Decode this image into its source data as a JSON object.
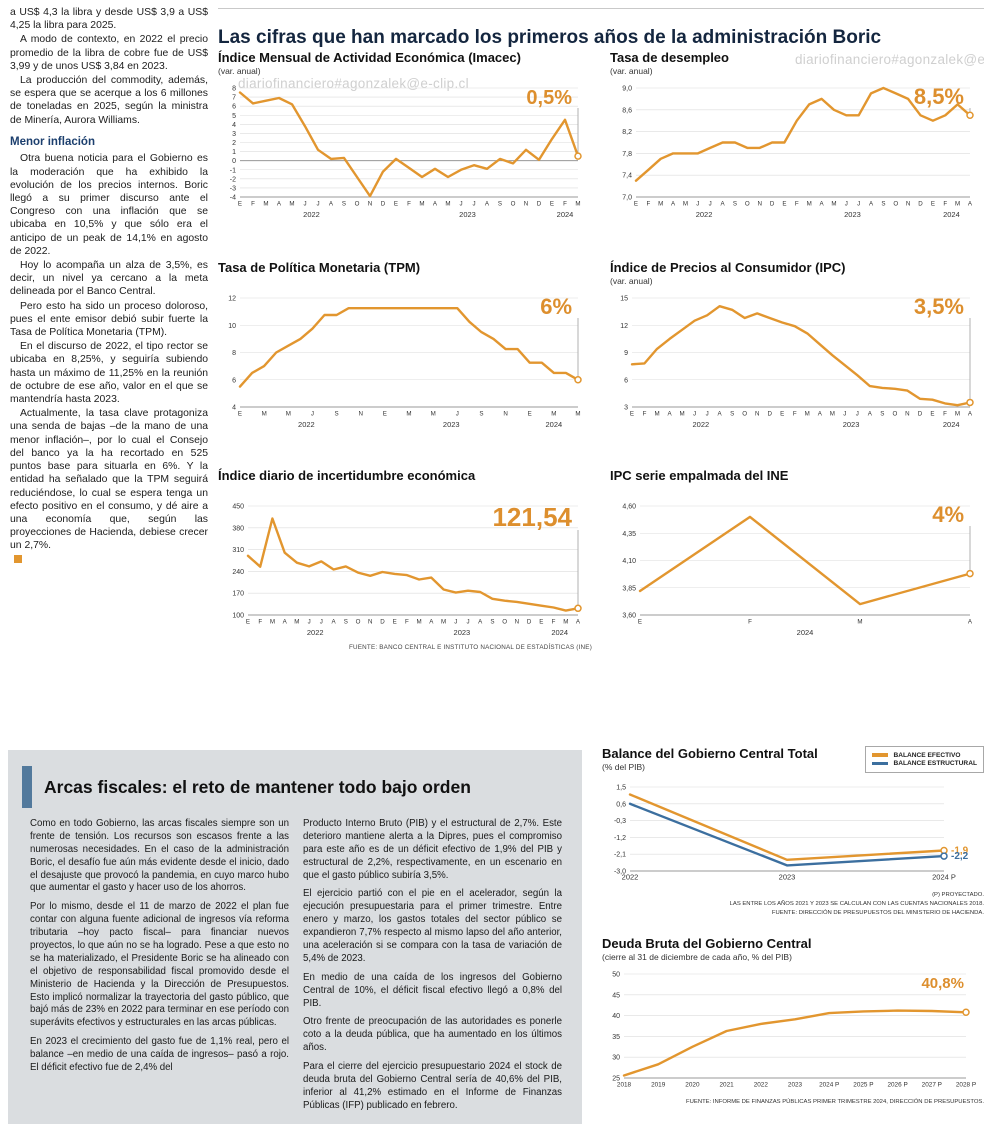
{
  "watermark": "diariofinanciero#agonzalek@e-clip.cl",
  "colors": {
    "accent_orange": "#E2962F",
    "accent_blue": "#3C6F9F",
    "headline_bar": "#52799c"
  },
  "left_column": {
    "paragraphs_top": [
      "a US$ 4,3 la libra y desde US$ 3,9 a US$ 4,25 la libra para 2025.",
      "A modo de contexto, en 2022 el precio promedio de la libra de cobre fue de US$ 3,99 y de unos US$ 3,84 en 2023.",
      "La producción del commodity, además, se espera que se acerque a los 6 millones de toneladas en 2025, según la ministra de Minería, Aurora Williams."
    ],
    "subhead": "Menor inflación",
    "paragraphs_bottom": [
      "Otra buena noticia para el Gobierno es la moderación que ha exhibido la evolución de los precios internos. Boric llegó a su primer discurso ante el Congreso con una inflación que se ubicaba en 10,5% y que sólo era el anticipo de un peak de 14,1% en agosto de 2022.",
      "Hoy lo acompaña un alza de 3,5%, es decir, un nivel ya cercano a la meta delineada por el Banco Central.",
      "Pero esto ha sido un proceso doloroso, pues el ente emisor debió subir fuerte la Tasa de Política Monetaria (TPM).",
      "En el discurso de 2022, el tipo rector se ubicaba en 8,25%, y seguiría subiendo hasta un máximo de 11,25% en la reunión de octubre de ese año, valor en el que se mantendría hasta 2023.",
      "Actualmente, la tasa clave protagoniza una senda de bajas –de la mano de una menor inflación–, por lo cual el Consejo del banco ya la ha recortado en 525 puntos base para situarla en 6%. Y la entidad ha señalado que la TPM seguirá reduciéndose, lo cual se espera tenga un efecto positivo en el consumo, y dé aire a una economía que, según las proyecciones de Hacienda, debiese crecer un 2,7%."
    ]
  },
  "main": {
    "title": "Las cifras que han marcado los primeros años de la administración Boric",
    "source_note": "FUENTE: BANCO CENTRAL E INSTITUTO NACIONAL DE ESTADÍSTICAS (INE)"
  },
  "bottom": {
    "headline": "Arcas fiscales: el reto de mantener todo bajo orden",
    "col1": [
      "Como en todo Gobierno, las arcas fiscales siempre son un frente de tensión. Los recursos son escasos frente a las numerosas necesidades. En el caso de la administración Boric, el desafío fue aún más evidente desde el inicio, dado el desajuste que provocó la pandemia, en cuyo marco hubo que aumentar el gasto y hacer uso de los ahorros.",
      "Por lo mismo, desde el 11 de marzo de 2022 el plan fue contar con alguna fuente adicional de ingresos vía reforma tributaria –hoy pacto fiscal– para financiar nuevos proyectos, lo que aún no se ha logrado. Pese a que esto no se ha materializado, el Presidente Boric se ha alineado con el objetivo de responsabilidad fiscal promovido desde el Ministerio de Hacienda y la Dirección de Presupuestos. Esto implicó normalizar la trayectoria del gasto público, que bajó más de 23% en 2022 para terminar en ese período con superávits efectivos y estructurales en las arcas públicas.",
      "En 2023 el crecimiento del gasto fue de 1,1% real, pero el balance –en medio de una caída de ingresos– pasó a rojo. El déficit efectivo fue de 2,4% del"
    ],
    "col2": [
      "Producto Interno Bruto (PIB) y el estructural de 2,7%. Este deterioro mantiene alerta a la Dipres, pues el compromiso para este año es de un déficit efectivo de 1,9% del PIB y estructural de 2,2%, respectivamente, en un escenario en que el gasto público subiría 3,5%.",
      "El ejercicio partió con el pie en el acelerador, según la ejecución presupuestaria para el primer trimestre. Entre enero y marzo, los gastos totales del sector público se expandieron 7,7% respecto al mismo lapso del año anterior, una aceleración si se compara con la tasa de variación de 5,4% de 2023.",
      "En medio de una caída de los ingresos del Gobierno Central de 10%, el déficit fiscal efectivo llegó a 0,8% del PIB.",
      "Otro frente de preocupación de las autoridades es ponerle coto a la deuda pública, que ha aumentado en los últimos años.",
      "Para el cierre del ejercicio presupuestario 2024 el stock de deuda bruta del Gobierno Central sería de 40,6% del PIB, inferior al 41,2% estimado en el Informe de Finanzas Públicas (IFP) publicado en febrero."
    ]
  },
  "chart_data": [
    {
      "type": "line",
      "title": "Índice Mensual de Actividad Económica (Imacec)",
      "subtitle": "(var. anual)",
      "highlight": "0,5%",
      "hl_size": 20,
      "hl_dy": 16,
      "guide": true,
      "zero_line": true,
      "ylim": [
        -4,
        8
      ],
      "ml": 22,
      "yticks": [
        [
          8,
          "8"
        ],
        [
          7,
          "7"
        ],
        [
          6,
          "6"
        ],
        [
          5,
          "5"
        ],
        [
          4,
          "4"
        ],
        [
          3,
          "3"
        ],
        [
          2,
          "2"
        ],
        [
          1,
          "1"
        ],
        [
          0,
          "0"
        ],
        [
          -1,
          "-1"
        ],
        [
          -2,
          "-2"
        ],
        [
          -3,
          "-3"
        ],
        [
          -4,
          "-4"
        ]
      ],
      "x_labels": [
        "E",
        "F",
        "M",
        "A",
        "M",
        "J",
        "J",
        "A",
        "S",
        "O",
        "N",
        "D",
        "E",
        "F",
        "M",
        "A",
        "M",
        "J",
        "J",
        "A",
        "S",
        "O",
        "N",
        "D",
        "E",
        "F",
        "M"
      ],
      "x_groups": [
        {
          "label": "2022",
          "count": 12
        },
        {
          "label": "2023",
          "count": 12
        },
        {
          "label": "2024",
          "count": 3
        }
      ],
      "series": [
        {
          "name": "Imacec var. anual",
          "color": "#E2962F",
          "values": [
            7.5,
            6.3,
            6.6,
            6.9,
            6.2,
            3.8,
            1.2,
            0.2,
            0.3,
            -1.8,
            -3.9,
            -1.2,
            0.2,
            -0.8,
            -1.8,
            -0.9,
            -1.8,
            -1.0,
            -0.5,
            -0.9,
            0.2,
            -0.3,
            1.2,
            0.1,
            2.4,
            4.5,
            0.5
          ]
        }
      ]
    },
    {
      "type": "line",
      "title": "Tasa de desempleo",
      "subtitle": "(var. anual)",
      "highlight": "8,5%",
      "hl_size": 22,
      "hl_dy": 16,
      "guide": true,
      "ylim": [
        7.0,
        9.0
      ],
      "ml": 26,
      "yticks": [
        [
          9.0,
          "9,0"
        ],
        [
          8.6,
          "8,6"
        ],
        [
          8.2,
          "8,2"
        ],
        [
          7.8,
          "7,8"
        ],
        [
          7.4,
          "7,4"
        ],
        [
          7.0,
          "7,0"
        ]
      ],
      "x_labels": [
        "E",
        "F",
        "M",
        "A",
        "M",
        "J",
        "J",
        "A",
        "S",
        "O",
        "N",
        "D",
        "E",
        "F",
        "M",
        "A",
        "M",
        "J",
        "J",
        "A",
        "S",
        "O",
        "N",
        "D",
        "E",
        "F",
        "M",
        "A"
      ],
      "x_groups": [
        {
          "label": "2022",
          "count": 12
        },
        {
          "label": "2023",
          "count": 12
        },
        {
          "label": "2024",
          "count": 4
        }
      ],
      "series": [
        {
          "name": "Tasa de desempleo",
          "color": "#E2962F",
          "values": [
            7.3,
            7.5,
            7.7,
            7.8,
            7.8,
            7.8,
            7.9,
            8.0,
            8.0,
            7.9,
            7.9,
            8.0,
            8.0,
            8.4,
            8.7,
            8.8,
            8.6,
            8.5,
            8.5,
            8.9,
            9.0,
            8.9,
            8.8,
            8.5,
            8.4,
            8.5,
            8.7,
            8.5
          ]
        }
      ]
    },
    {
      "type": "line",
      "title": "Tasa de Política Monetaria (TPM)",
      "highlight": "6%",
      "hl_size": 22,
      "hl_dy": 16,
      "guide": true,
      "ylim": [
        4,
        12
      ],
      "ml": 22,
      "yticks": [
        [
          12,
          "12"
        ],
        [
          10,
          "10"
        ],
        [
          8,
          "8"
        ],
        [
          6,
          "6"
        ],
        [
          4,
          "4"
        ]
      ],
      "x_labels": [
        "E",
        "",
        "M",
        "",
        "M",
        "",
        "J",
        "",
        "S",
        "",
        "N",
        "",
        "E",
        "",
        "M",
        "",
        "M",
        "",
        "J",
        "",
        "S",
        "",
        "N",
        "",
        "E",
        "",
        "M",
        "",
        "M"
      ],
      "x_groups": [
        {
          "label": "2022",
          "count": 12
        },
        {
          "label": "2023",
          "count": 12
        },
        {
          "label": "2024",
          "count": 5
        }
      ],
      "series": [
        {
          "name": "TPM",
          "color": "#E2962F",
          "values": [
            5.5,
            6.5,
            7.0,
            8.0,
            8.5,
            9.0,
            9.75,
            10.75,
            10.75,
            11.25,
            11.25,
            11.25,
            11.25,
            11.25,
            11.25,
            11.25,
            11.25,
            11.25,
            11.25,
            10.25,
            9.5,
            9.0,
            8.25,
            8.25,
            7.25,
            7.25,
            6.5,
            6.5,
            6.0
          ]
        }
      ]
    },
    {
      "type": "line",
      "title": "Índice de Precios al Consumidor (IPC)",
      "subtitle": "(var. anual)",
      "highlight": "3,5%",
      "hl_size": 22,
      "hl_dy": 16,
      "guide": true,
      "ylim": [
        3,
        15
      ],
      "ml": 22,
      "yticks": [
        [
          15,
          "15"
        ],
        [
          12,
          "12"
        ],
        [
          9,
          "9"
        ],
        [
          6,
          "6"
        ],
        [
          3,
          "3"
        ]
      ],
      "x_labels": [
        "E",
        "F",
        "M",
        "A",
        "M",
        "J",
        "J",
        "A",
        "S",
        "O",
        "N",
        "D",
        "E",
        "F",
        "M",
        "A",
        "M",
        "J",
        "J",
        "A",
        "S",
        "O",
        "N",
        "D",
        "E",
        "F",
        "M",
        "A"
      ],
      "x_groups": [
        {
          "label": "2022",
          "count": 12
        },
        {
          "label": "2023",
          "count": 12
        },
        {
          "label": "2024",
          "count": 4
        }
      ],
      "series": [
        {
          "name": "IPC var. anual",
          "color": "#E2962F",
          "values": [
            7.7,
            7.8,
            9.4,
            10.5,
            11.5,
            12.5,
            13.1,
            14.1,
            13.7,
            12.8,
            13.3,
            12.8,
            12.3,
            11.9,
            11.1,
            9.9,
            8.7,
            7.6,
            6.5,
            5.3,
            5.1,
            5.0,
            4.8,
            3.9,
            3.8,
            3.4,
            3.2,
            3.5
          ]
        }
      ]
    },
    {
      "type": "line",
      "title": "Índice diario de incertidumbre económica",
      "highlight": "121,54",
      "hl_size": 26,
      "hl_dy": 20,
      "guide": true,
      "ylim": [
        100,
        450
      ],
      "ml": 30,
      "yticks": [
        [
          450,
          "450"
        ],
        [
          380,
          "380"
        ],
        [
          310,
          "310"
        ],
        [
          240,
          "240"
        ],
        [
          170,
          "170"
        ],
        [
          100,
          "100"
        ]
      ],
      "x_labels": [
        "E",
        "F",
        "M",
        "A",
        "M",
        "J",
        "J",
        "A",
        "S",
        "O",
        "N",
        "D",
        "E",
        "F",
        "M",
        "A",
        "M",
        "J",
        "J",
        "A",
        "S",
        "O",
        "N",
        "D",
        "E",
        "F",
        "M",
        "A"
      ],
      "x_groups": [
        {
          "label": "2022",
          "count": 12
        },
        {
          "label": "2023",
          "count": 12
        },
        {
          "label": "2024",
          "count": 4
        }
      ],
      "series": [
        {
          "name": "Incertidumbre económica",
          "color": "#E2962F",
          "values": [
            290,
            255,
            410,
            300,
            268,
            256,
            272,
            246,
            256,
            236,
            226,
            238,
            232,
            228,
            214,
            220,
            182,
            172,
            178,
            174,
            152,
            146,
            142,
            136,
            130,
            124,
            114,
            121.54
          ]
        }
      ]
    },
    {
      "type": "line",
      "title": "IPC serie empalmada del INE",
      "highlight": "4%",
      "hl_size": 22,
      "hl_dy": 16,
      "guide": true,
      "ylim": [
        3.6,
        4.6
      ],
      "ml": 30,
      "yticks": [
        [
          4.6,
          "4,60"
        ],
        [
          4.35,
          "4,35"
        ],
        [
          4.1,
          "4,10"
        ],
        [
          3.85,
          "3,85"
        ],
        [
          3.6,
          "3,60"
        ]
      ],
      "x_labels": [
        "E",
        "F",
        "M",
        "A"
      ],
      "x_groups": [
        {
          "label": "2024",
          "count": 4
        }
      ],
      "series": [
        {
          "name": "IPC serie empalmada",
          "color": "#E2962F",
          "values": [
            3.82,
            4.5,
            3.7,
            3.98
          ]
        }
      ]
    },
    {
      "type": "line",
      "title": "Balance del Gobierno Central Total",
      "subtitle": "(% del PIB)",
      "legend": [
        "BALANCE EFECTIVO",
        "BALANCE ESTRUCTURAL"
      ],
      "ylim": [
        -3.0,
        1.5
      ],
      "ml": 28,
      "mr": 40,
      "xfont": 7.5,
      "yticks": [
        [
          1.5,
          "1,5"
        ],
        [
          0.6,
          "0,6"
        ],
        [
          -0.3,
          "-0,3"
        ],
        [
          -1.2,
          "-1,2"
        ],
        [
          -2.1,
          "-2,1"
        ],
        [
          -3.0,
          "-3,0"
        ]
      ],
      "x_labels": [
        "2022",
        "2023",
        "2024 P"
      ],
      "series": [
        {
          "name": "Balance efectivo",
          "color": "#E2962F",
          "values": [
            1.1,
            -2.4,
            -1.9
          ],
          "end_label": "-1,9"
        },
        {
          "name": "Balance estructural",
          "color": "#3C6F9F",
          "values": [
            0.6,
            -2.7,
            -2.2
          ],
          "end_label": "-2,2"
        }
      ],
      "footnotes": [
        "(P) PROYECTADO.",
        "LAS ENTRE LOS AÑOS 2021 Y 2023 SE CALCULAN  CON LAS CUENTAS NACIONALES 2018.",
        "FUENTE: DIRECCIÓN DE PRESUPUESTOS DEL MINISTERIO DE HACIENDA."
      ]
    },
    {
      "type": "line",
      "title": "Deuda Bruta del Gobierno Central",
      "subtitle": "(cierre al 31 de diciembre de cada año, % del PIB)",
      "highlight": "40,8%",
      "hl_size": 15,
      "hl_dy": 14,
      "ylim": [
        25,
        50
      ],
      "ml": 22,
      "mr": 18,
      "xfont": 6.4,
      "yticks": [
        [
          50,
          "50"
        ],
        [
          45,
          "45"
        ],
        [
          40,
          "40"
        ],
        [
          35,
          "35"
        ],
        [
          30,
          "30"
        ],
        [
          25,
          "25"
        ]
      ],
      "x_labels": [
        "2018",
        "2019",
        "2020",
        "2021",
        "2022",
        "2023",
        "2024 P",
        "2025 P",
        "2026 P",
        "2027 P",
        "2028 P"
      ],
      "series": [
        {
          "name": "Deuda bruta",
          "color": "#E2962F",
          "values": [
            25.6,
            28.3,
            32.5,
            36.3,
            38.0,
            39.1,
            40.6,
            41.0,
            41.2,
            41.1,
            40.8
          ]
        }
      ],
      "footnote": "FUENTE: INFORME DE FINANZAS PÚBLICAS PRIMER TRIMESTRE 2024, DIRECCIÓN DE PRESUPUESTOS."
    }
  ]
}
